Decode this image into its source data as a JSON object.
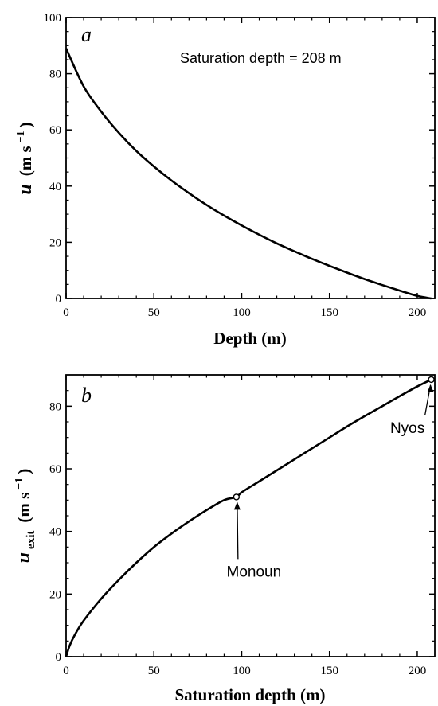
{
  "chart_data": [
    {
      "type": "line",
      "panel_label": "a",
      "annotation": "Saturation depth = 208 m",
      "xlabel": "Depth (m)",
      "ylabel_main": "u",
      "ylabel_unit": "(m s",
      "ylabel_exp": "−1",
      "ylabel_close": ")",
      "xlim": [
        0,
        210
      ],
      "ylim": [
        0,
        100
      ],
      "xticks": [
        "0",
        "50",
        "100",
        "150",
        "200"
      ],
      "yticks": [
        "0",
        "20",
        "40",
        "60",
        "80",
        "100"
      ],
      "xtick_values": [
        0,
        50,
        100,
        150,
        200
      ],
      "ytick_values": [
        0,
        20,
        40,
        60,
        80,
        100
      ],
      "series": [
        {
          "x": [
            0,
            10,
            20,
            30,
            40,
            50,
            60,
            70,
            80,
            90,
            100,
            110,
            120,
            130,
            140,
            150,
            160,
            170,
            180,
            190,
            200,
            208
          ],
          "y": [
            89,
            75.5,
            66.5,
            59,
            52.5,
            47,
            42,
            37.5,
            33.3,
            29.5,
            26,
            22.7,
            19.6,
            16.8,
            14.1,
            11.6,
            9.2,
            6.9,
            4.8,
            2.8,
            0.9,
            0
          ]
        }
      ]
    },
    {
      "type": "line",
      "panel_label": "b",
      "xlabel": "Saturation depth (m)",
      "ylabel_main": "u",
      "ylabel_sub": "exit",
      "ylabel_unit": "(m s",
      "ylabel_exp": "−1",
      "ylabel_close": ")",
      "xlim": [
        0,
        210
      ],
      "ylim": [
        0,
        90
      ],
      "xticks": [
        "0",
        "50",
        "100",
        "150",
        "200"
      ],
      "yticks": [
        "0",
        "20",
        "40",
        "60",
        "80"
      ],
      "xtick_values": [
        0,
        50,
        100,
        150,
        200
      ],
      "ytick_values": [
        0,
        20,
        40,
        60,
        80
      ],
      "series": [
        {
          "x": [
            0,
            2,
            5,
            10,
            20,
            30,
            40,
            50,
            60,
            70,
            80,
            90,
            97,
            100,
            110,
            120,
            130,
            140,
            150,
            160,
            170,
            180,
            190,
            200,
            208
          ],
          "y": [
            0,
            3.5,
            7,
            11.5,
            18.5,
            24.5,
            30,
            35,
            39.3,
            43.2,
            46.8,
            50,
            51,
            52.5,
            56,
            59.5,
            63,
            66.5,
            70,
            73.5,
            76.8,
            80,
            83.2,
            86.3,
            88.5
          ]
        }
      ],
      "points": [
        {
          "label": "Monoun",
          "x": 97,
          "y": 51
        },
        {
          "label": "Nyos",
          "x": 208,
          "y": 88.5
        }
      ]
    }
  ]
}
